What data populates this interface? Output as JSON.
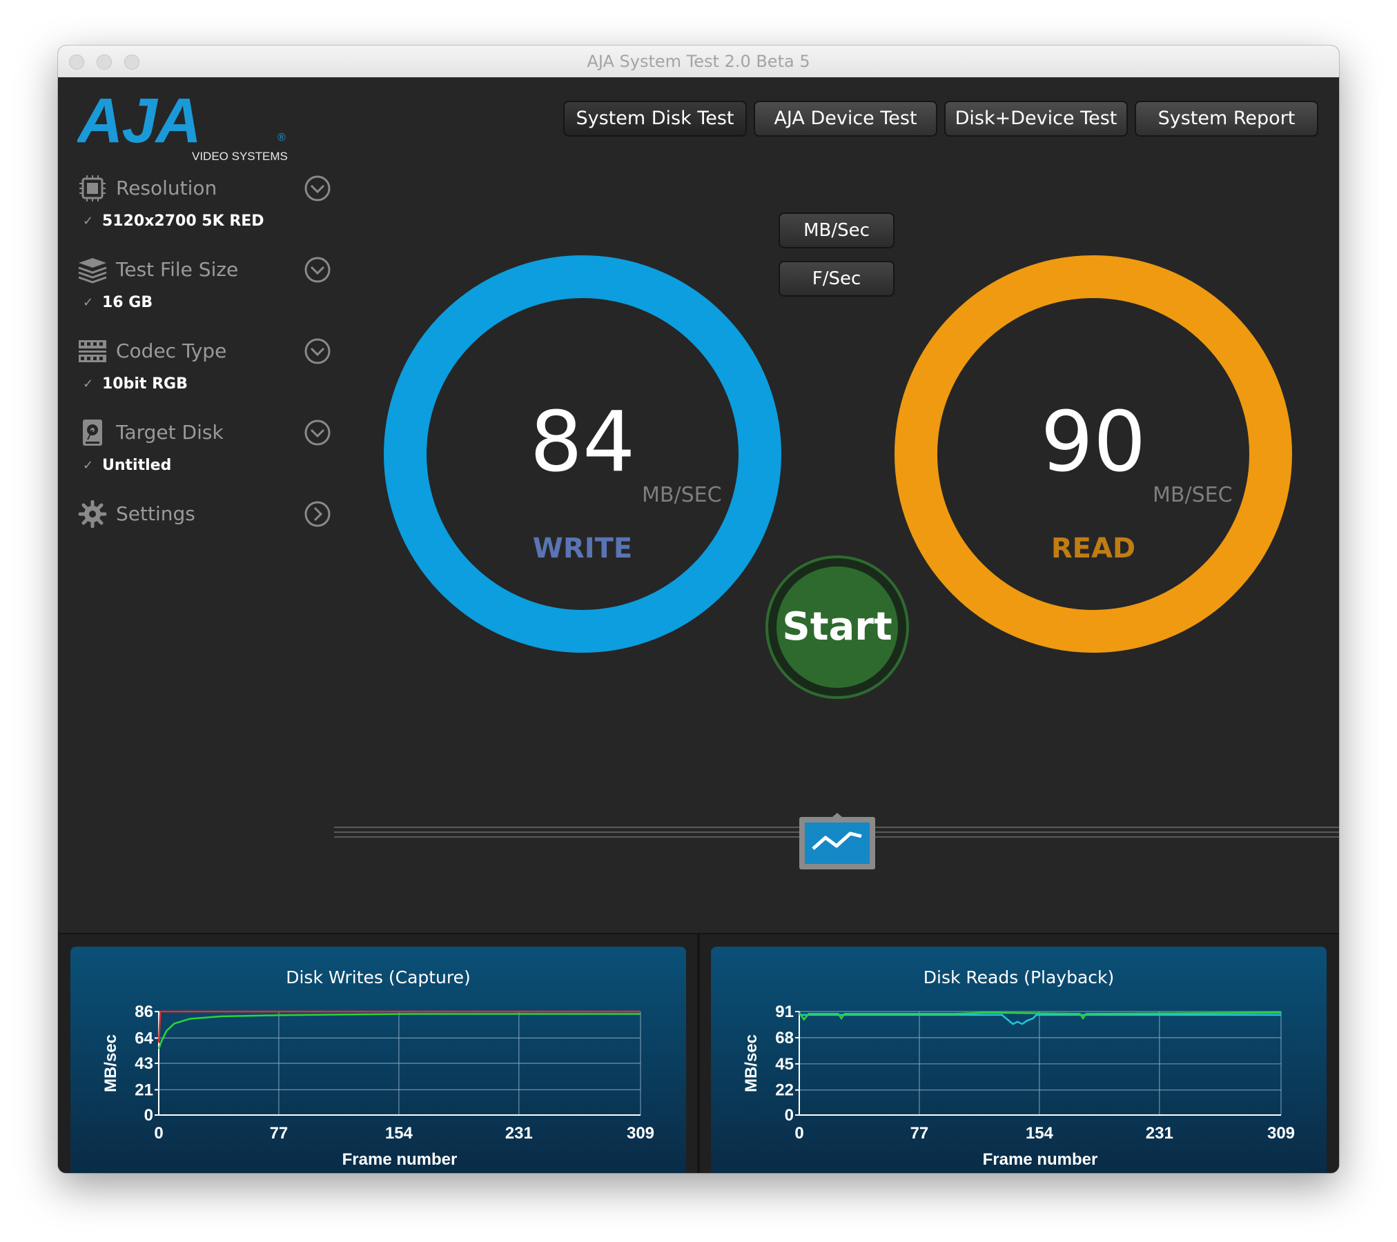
{
  "window": {
    "title": "AJA System Test 2.0 Beta 5"
  },
  "logo": {
    "brand": "AJA",
    "subtitle": "VIDEO SYSTEMS",
    "registered": "®"
  },
  "sidebar": {
    "items": [
      {
        "label": "Resolution",
        "value": "5120x2700 5K RED",
        "icon": "chip-icon"
      },
      {
        "label": "Test File Size",
        "value": "16 GB",
        "icon": "layers-icon"
      },
      {
        "label": "Codec Type",
        "value": "10bit RGB",
        "icon": "film-strip-icon"
      },
      {
        "label": "Target Disk",
        "value": "Untitled",
        "icon": "disk-icon"
      },
      {
        "label": "Settings",
        "icon": "gear-icon"
      }
    ],
    "check": "✓"
  },
  "tabs": [
    "System Disk Test",
    "AJA Device Test",
    "Disk+Device Test",
    "System Report"
  ],
  "units": {
    "mb": "MB/Sec",
    "fps": "F/Sec"
  },
  "write": {
    "value": "84",
    "unit": "MB/SEC",
    "label": "WRITE",
    "ring_color": "#0c9ede",
    "label_color": "#5a74b4"
  },
  "read": {
    "value": "90",
    "unit": "MB/SEC",
    "label": "READ",
    "ring_color": "#ef9a10",
    "label_color": "#c17d13"
  },
  "start": {
    "label": "Start",
    "color": "#2e6a2e"
  },
  "charts": {
    "writes": {
      "title": "Disk Writes (Capture)",
      "ylabel": "MB/sec",
      "xlabel": "Frame number",
      "x_ticks": [
        "0",
        "77",
        "154",
        "231",
        "309"
      ],
      "y_ticks": [
        "0",
        "21",
        "43",
        "64",
        "86"
      ],
      "series": [
        {
          "color": "#e03030",
          "points": [
            [
              0,
              60
            ],
            [
              1,
              86
            ],
            [
              5,
              86
            ],
            [
              20,
              86
            ],
            [
              60,
              86
            ],
            [
              150,
              86
            ],
            [
              309,
              86
            ]
          ]
        },
        {
          "color": "#2ad43a",
          "points": [
            [
              0,
              55
            ],
            [
              2,
              62
            ],
            [
              5,
              70
            ],
            [
              10,
              76
            ],
            [
              20,
              80
            ],
            [
              40,
              82
            ],
            [
              80,
              83
            ],
            [
              160,
              84
            ],
            [
              309,
              84
            ]
          ]
        }
      ]
    },
    "reads": {
      "title": "Disk Reads (Playback)",
      "ylabel": "MB/sec",
      "xlabel": "Frame number",
      "x_ticks": [
        "0",
        "77",
        "154",
        "231",
        "309"
      ],
      "y_ticks": [
        "0",
        "22",
        "45",
        "68",
        "91"
      ],
      "series": [
        {
          "color": "#1ec8d8",
          "points": [
            [
              0,
              88
            ],
            [
              130,
              88
            ],
            [
              137,
              80
            ],
            [
              140,
              82
            ],
            [
              143,
              80
            ],
            [
              146,
              83
            ],
            [
              150,
              85
            ],
            [
              152,
              88
            ],
            [
              309,
              88
            ]
          ]
        },
        {
          "color": "#2ad43a",
          "points": [
            [
              0,
              90
            ],
            [
              3,
              84
            ],
            [
              6,
              89
            ],
            [
              25,
              89
            ],
            [
              27,
              85
            ],
            [
              29,
              89
            ],
            [
              100,
              89
            ],
            [
              120,
              90
            ],
            [
              180,
              89
            ],
            [
              182,
              85
            ],
            [
              184,
              89
            ],
            [
              309,
              90
            ]
          ]
        }
      ]
    }
  }
}
